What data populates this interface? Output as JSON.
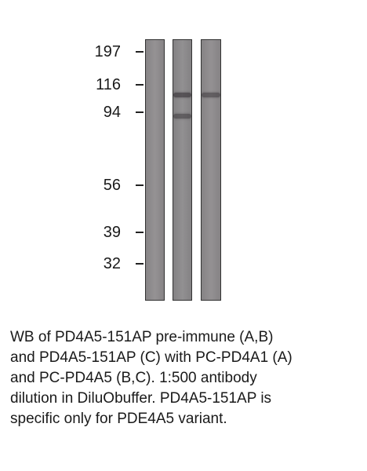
{
  "markers": [
    {
      "label": "197",
      "kda": 197
    },
    {
      "label": "116",
      "kda": 116
    },
    {
      "label": "94",
      "kda": 94
    },
    {
      "label": "56",
      "kda": 56
    },
    {
      "label": "39",
      "kda": 39
    },
    {
      "label": "32",
      "kda": 32
    }
  ],
  "lanes": [
    {
      "id": "A",
      "color": "#8f8c8e",
      "bands": []
    },
    {
      "id": "B",
      "color": "#8c8a8c",
      "bands": [
        {
          "kda": 116,
          "intensity": 0.55
        },
        {
          "kda": 94,
          "intensity": 0.45
        }
      ]
    },
    {
      "id": "C",
      "color": "#8e8b8d",
      "bands": [
        {
          "kda": 116,
          "intensity": 0.45
        }
      ]
    }
  ],
  "caption": {
    "lines": [
      "WB of PD4A5-151AP pre-immune (A,B)",
      "and PD4A5-151AP (C) with PC-PD4A1 (A)",
      "and PC-PD4A5 (B,C).  1:500 antibody",
      "dilution in DiluObuffer.  PD4A5-151AP is",
      "specific only for PDE4A5 variant."
    ]
  }
}
